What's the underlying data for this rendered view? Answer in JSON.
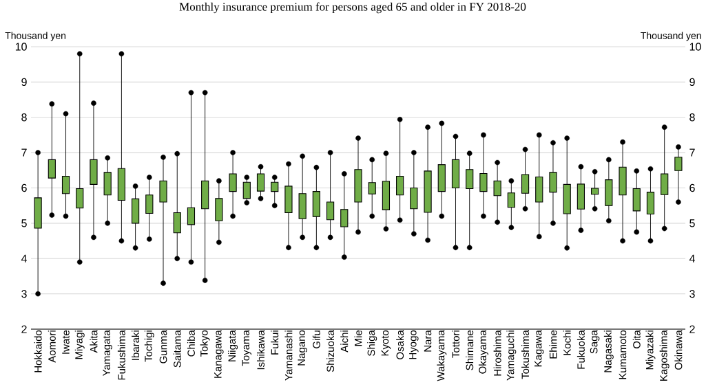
{
  "chart_data": {
    "type": "box",
    "title": "Monthly insurance premium for persons aged 65 and older in FY 2018-20",
    "ylabel": "Thousand yen",
    "y2label": "Thousand yen",
    "categories": [
      "Hokkaido",
      "Aomori",
      "Iwate",
      "Miyagi",
      "Akita",
      "Yamagata",
      "Fukushima",
      "Ibaraki",
      "Tochigi",
      "Gunma",
      "Saitama",
      "Chiba",
      "Tokyo",
      "Kanagawa",
      "Niigata",
      "Toyama",
      "Ishikawa",
      "Fukui",
      "Yamanashi",
      "Nagano",
      "Gifu",
      "Shizuoka",
      "Aichi",
      "Mie",
      "Shiga",
      "Kyoto",
      "Osaka",
      "Hyogo",
      "Nara",
      "Wakayama",
      "Tottori",
      "Shimane",
      "Okayama",
      "Hiroshima",
      "Yamaguchi",
      "Tokushima",
      "Kagawa",
      "Ehime",
      "Kochi",
      "Fukuoka",
      "Saga",
      "Nagasaki",
      "Kumamoto",
      "Oita",
      "Miyazaki",
      "Kagoshima",
      "Okinawa"
    ],
    "series": [
      {
        "color": "#70ad47",
        "boxes": [
          {
            "low": 3.0,
            "q1": 4.86,
            "q3": 5.72,
            "high": 7.0
          },
          {
            "low": 5.23,
            "q1": 6.28,
            "q3": 6.8,
            "high": 8.38
          },
          {
            "low": 5.2,
            "q1": 5.84,
            "q3": 6.33,
            "high": 8.1
          },
          {
            "low": 3.9,
            "q1": 5.43,
            "q3": 5.98,
            "high": 9.8
          },
          {
            "low": 4.6,
            "q1": 6.1,
            "q3": 6.8,
            "high": 8.4
          },
          {
            "low": 5.0,
            "q1": 5.8,
            "q3": 6.44,
            "high": 6.85
          },
          {
            "low": 4.5,
            "q1": 5.65,
            "q3": 6.55,
            "high": 9.8
          },
          {
            "low": 4.3,
            "q1": 5.0,
            "q3": 5.69,
            "high": 6.05
          },
          {
            "low": 4.55,
            "q1": 5.28,
            "q3": 5.8,
            "high": 6.3
          },
          {
            "low": 3.3,
            "q1": 5.6,
            "q3": 6.2,
            "high": 6.87
          },
          {
            "low": 4.0,
            "q1": 4.73,
            "q3": 5.3,
            "high": 6.97
          },
          {
            "low": 3.9,
            "q1": 4.96,
            "q3": 5.44,
            "high": 8.7
          },
          {
            "low": 3.38,
            "q1": 5.41,
            "q3": 6.2,
            "high": 8.7
          },
          {
            "low": 4.46,
            "q1": 5.07,
            "q3": 5.7,
            "high": 6.2
          },
          {
            "low": 5.2,
            "q1": 5.9,
            "q3": 6.4,
            "high": 7.0
          },
          {
            "low": 5.58,
            "q1": 5.7,
            "q3": 6.16,
            "high": 6.3
          },
          {
            "low": 5.7,
            "q1": 5.91,
            "q3": 6.4,
            "high": 6.6
          },
          {
            "low": 5.5,
            "q1": 5.9,
            "q3": 6.16,
            "high": 6.3
          },
          {
            "low": 4.31,
            "q1": 5.3,
            "q3": 6.05,
            "high": 6.68
          },
          {
            "low": 4.6,
            "q1": 5.13,
            "q3": 5.84,
            "high": 6.9
          },
          {
            "low": 4.31,
            "q1": 5.19,
            "q3": 5.9,
            "high": 6.58
          },
          {
            "low": 4.6,
            "q1": 5.1,
            "q3": 5.6,
            "high": 7.0
          },
          {
            "low": 4.04,
            "q1": 4.9,
            "q3": 5.39,
            "high": 6.4
          },
          {
            "low": 4.75,
            "q1": 5.6,
            "q3": 6.52,
            "high": 7.41
          },
          {
            "low": 5.2,
            "q1": 5.83,
            "q3": 6.15,
            "high": 6.8
          },
          {
            "low": 4.84,
            "q1": 5.38,
            "q3": 6.19,
            "high": 6.98
          },
          {
            "low": 5.09,
            "q1": 5.8,
            "q3": 6.33,
            "high": 7.94
          },
          {
            "low": 4.7,
            "q1": 5.41,
            "q3": 6.0,
            "high": 7.0
          },
          {
            "low": 4.52,
            "q1": 5.31,
            "q3": 6.48,
            "high": 7.72
          },
          {
            "low": 5.2,
            "q1": 5.9,
            "q3": 6.66,
            "high": 7.83
          },
          {
            "low": 4.31,
            "q1": 6.0,
            "q3": 6.8,
            "high": 7.46
          },
          {
            "low": 4.31,
            "q1": 5.98,
            "q3": 6.52,
            "high": 6.98
          },
          {
            "low": 5.2,
            "q1": 5.9,
            "q3": 6.41,
            "high": 7.5
          },
          {
            "low": 5.03,
            "q1": 5.78,
            "q3": 6.2,
            "high": 6.72
          },
          {
            "low": 4.88,
            "q1": 5.45,
            "q3": 5.86,
            "high": 6.2
          },
          {
            "low": 5.41,
            "q1": 5.85,
            "q3": 6.38,
            "high": 7.09
          },
          {
            "low": 4.62,
            "q1": 5.6,
            "q3": 6.31,
            "high": 7.5
          },
          {
            "low": 5.0,
            "q1": 5.88,
            "q3": 6.44,
            "high": 7.28
          },
          {
            "low": 4.3,
            "q1": 5.27,
            "q3": 6.1,
            "high": 7.41
          },
          {
            "low": 4.8,
            "q1": 5.4,
            "q3": 6.11,
            "high": 6.6
          },
          {
            "low": 5.41,
            "q1": 5.82,
            "q3": 5.99,
            "high": 6.46
          },
          {
            "low": 5.07,
            "q1": 5.5,
            "q3": 6.23,
            "high": 6.8
          },
          {
            "low": 4.5,
            "q1": 5.8,
            "q3": 6.59,
            "high": 7.3
          },
          {
            "low": 4.75,
            "q1": 5.35,
            "q3": 5.98,
            "high": 6.48
          },
          {
            "low": 4.5,
            "q1": 5.26,
            "q3": 5.88,
            "high": 6.54
          },
          {
            "low": 4.85,
            "q1": 5.81,
            "q3": 6.4,
            "high": 7.72
          },
          {
            "low": 5.6,
            "q1": 6.49,
            "q3": 6.87,
            "high": 7.16
          }
        ]
      },
      {
        "type": "scatter",
        "color": "#000000",
        "values": [
          7.0,
          8.38,
          8.1,
          9.8,
          8.4,
          6.85,
          9.8,
          6.05,
          6.3,
          6.87,
          6.97,
          8.7,
          8.7,
          6.2,
          7.0,
          6.3,
          6.6,
          6.3,
          6.68,
          6.9,
          6.58,
          7.0,
          6.4,
          7.41,
          6.8,
          6.98,
          7.94,
          7.0,
          7.72,
          7.83,
          7.46,
          6.98,
          7.5,
          6.72,
          6.2,
          7.09,
          7.5,
          7.28,
          7.41,
          6.6,
          6.46,
          6.8,
          7.3,
          6.48,
          6.54,
          7.72,
          7.16
        ]
      },
      {
        "type": "scatter",
        "color": "#000000",
        "values": [
          3.0,
          5.23,
          5.2,
          3.9,
          4.6,
          5.0,
          4.5,
          4.3,
          4.55,
          3.3,
          4.0,
          3.9,
          3.38,
          4.46,
          5.2,
          5.58,
          5.7,
          5.5,
          4.31,
          4.6,
          4.31,
          4.6,
          4.04,
          4.75,
          5.2,
          4.84,
          5.09,
          4.7,
          4.52,
          5.2,
          4.31,
          4.31,
          5.2,
          5.03,
          4.88,
          5.41,
          4.62,
          5.0,
          4.3,
          4.8,
          5.41,
          5.07,
          4.5,
          4.75,
          4.5,
          4.85,
          5.6
        ]
      }
    ],
    "marker": "circle",
    "ylim": [
      2,
      10
    ],
    "yticks": [
      2,
      3,
      4,
      5,
      6,
      7,
      8,
      9,
      10
    ],
    "y2lim": [
      2,
      10
    ],
    "y2ticks": [
      2,
      3,
      4,
      5,
      6,
      7,
      8,
      9,
      10
    ],
    "grid": "y"
  }
}
